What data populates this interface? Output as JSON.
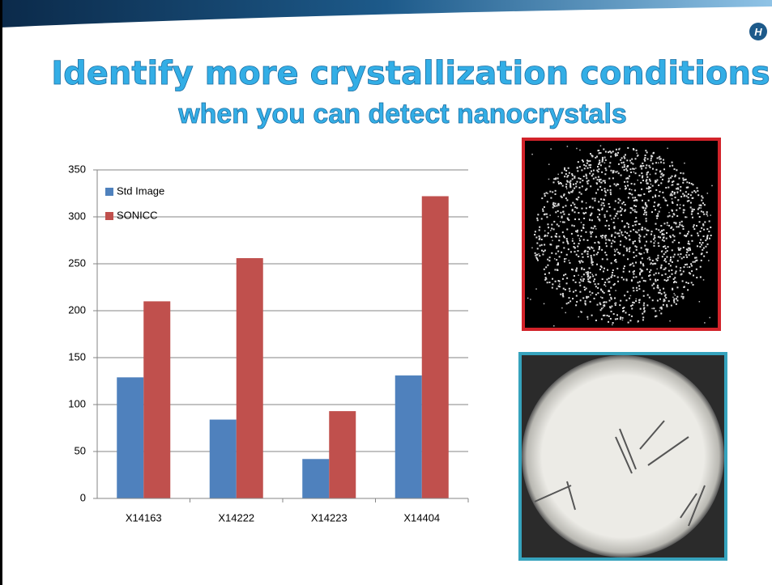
{
  "slide_title": [
    "Identify more crystallization conditions",
    "when you can detect nanocrystals"
  ],
  "chart_data": {
    "type": "bar",
    "categories": [
      "X14163",
      "X14222",
      "X14223",
      "X14404"
    ],
    "series": [
      {
        "name": "Std Image",
        "color": "#4f81bd",
        "values": [
          129,
          84,
          42,
          131
        ]
      },
      {
        "name": "SONICC",
        "color": "#c0504d",
        "values": [
          210,
          256,
          93,
          322
        ]
      }
    ],
    "ylim": [
      0,
      350
    ],
    "yticks": [
      0,
      50,
      100,
      150,
      200,
      250,
      300,
      350
    ],
    "grid": true,
    "legend": "upper-left"
  }
}
